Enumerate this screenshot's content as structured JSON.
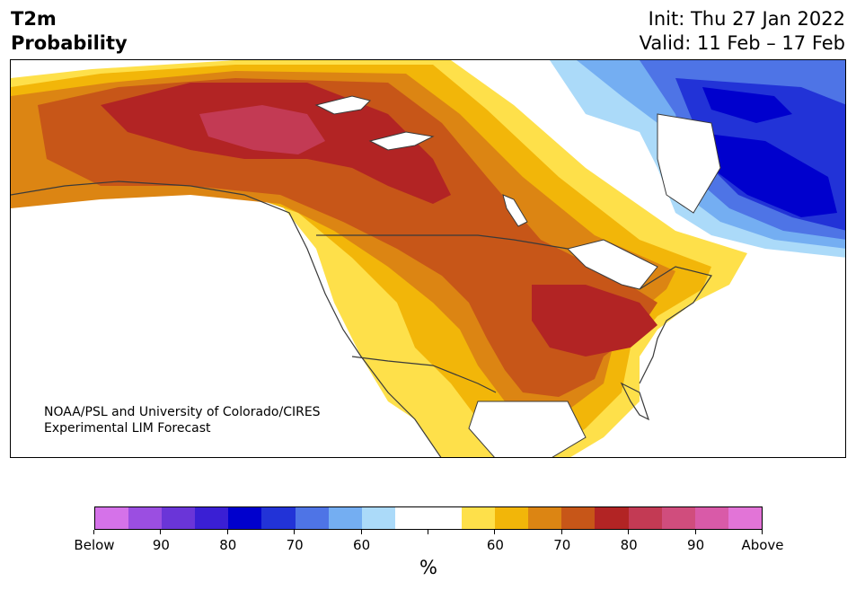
{
  "title": {
    "line1": "T2m",
    "line2": "Probability"
  },
  "init": "Init: Thu 27 Jan 2022",
  "valid": "Valid: 11 Feb – 17 Feb",
  "credit": {
    "line1": "NOAA/PSL and University of Colorado/CIRES",
    "line2": "Experimental LIM Forecast"
  },
  "colorbar": {
    "unit": "%",
    "colors": [
      "#d572e9",
      "#9b4ee1",
      "#6a35d8",
      "#3a1fd4",
      "#0000cd",
      "#2233d7",
      "#4e74e6",
      "#74aef2",
      "#abdaf9",
      "#ffffff",
      "#ffffff",
      "#fee04a",
      "#f2b609",
      "#dc8513",
      "#c75618",
      "#b22424",
      "#c33a54",
      "#d04d7d",
      "#d95aa8",
      "#e274d7"
    ],
    "ticks": [
      {
        "label": "Below"
      },
      {
        "label": "90"
      },
      {
        "label": "80"
      },
      {
        "label": "70"
      },
      {
        "label": "60"
      },
      {
        "label": ""
      },
      {
        "label": "60"
      },
      {
        "label": "70"
      },
      {
        "label": "80"
      },
      {
        "label": "90"
      },
      {
        "label": "Above"
      }
    ]
  },
  "map": {
    "region": "North America",
    "variable": "2m temperature probability",
    "warm_colors": [
      "#fee04a",
      "#f2b609",
      "#dc8513",
      "#c75618",
      "#b22424",
      "#c33a54"
    ],
    "cold_colors": [
      "#abdaf9",
      "#74aef2",
      "#4e74e6",
      "#2233d7",
      "#0000cd",
      "#3a1fd4"
    ]
  }
}
